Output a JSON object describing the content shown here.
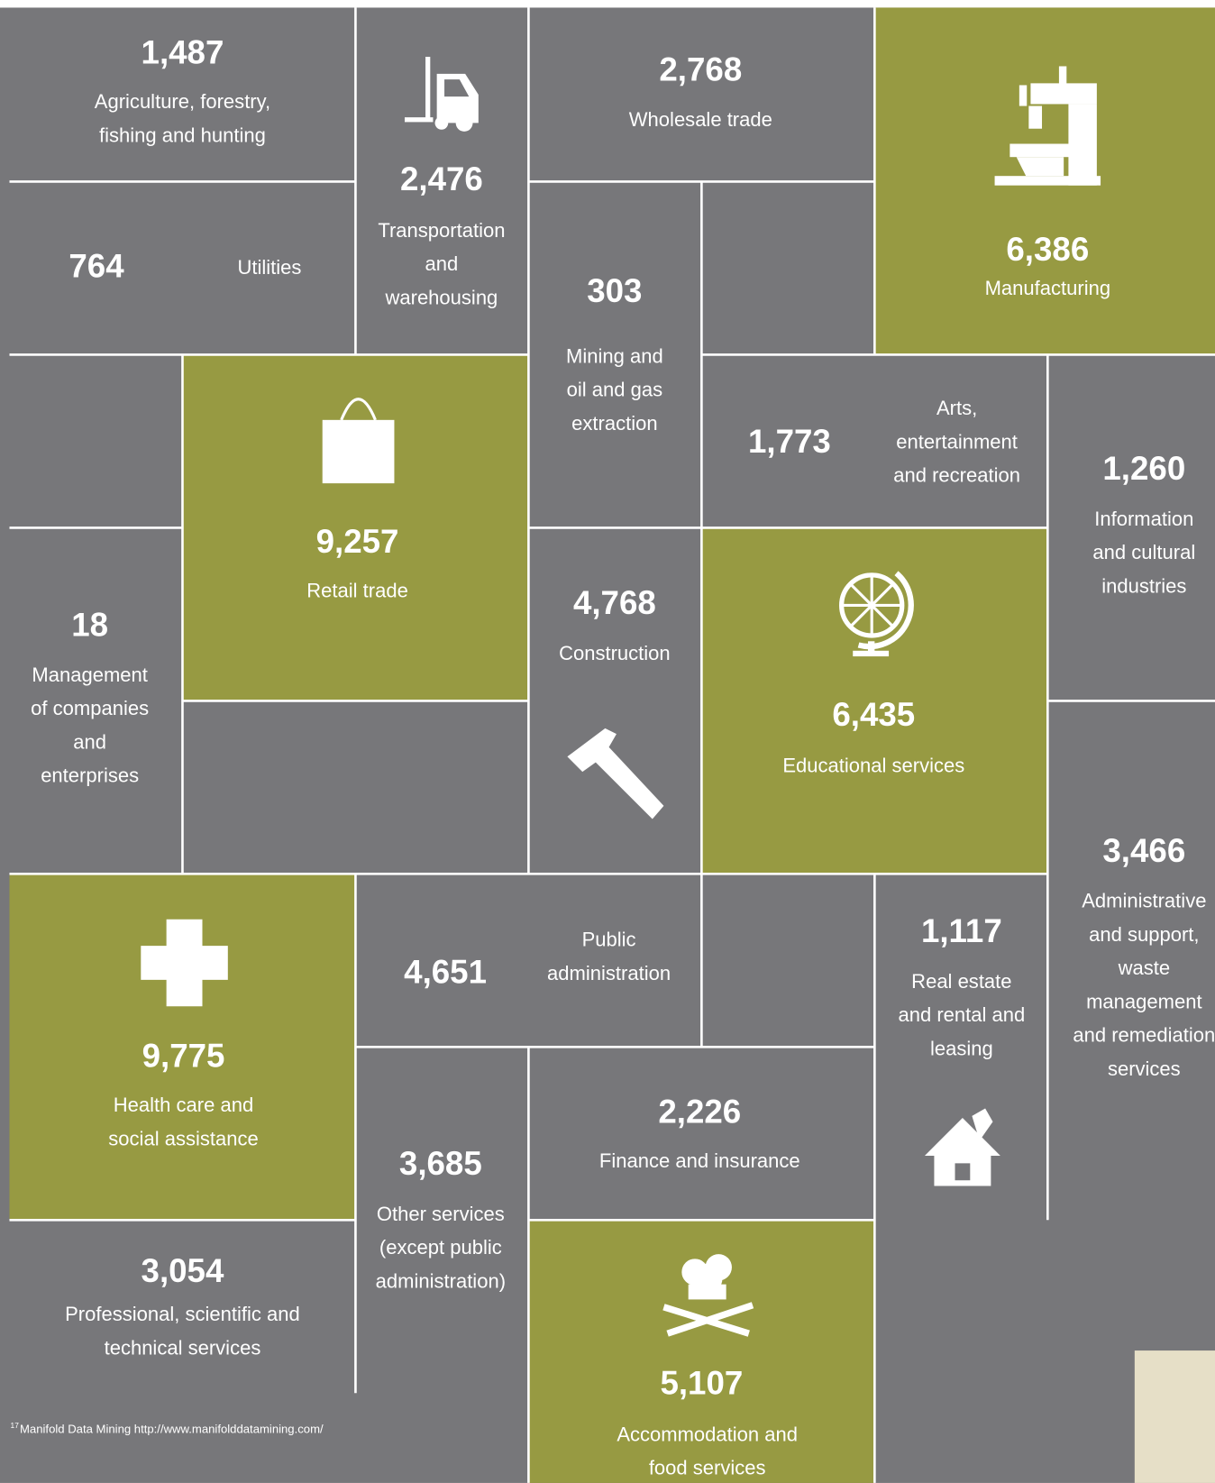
{
  "tiles": [
    {
      "value": "1,487",
      "label": [
        "Agriculture, forestry,",
        "fishing and hunting"
      ]
    },
    {
      "value": "764",
      "label": [
        "Utilities"
      ]
    },
    {
      "value": "2,476",
      "label": [
        "Transportation",
        "and",
        "warehousing"
      ]
    },
    {
      "value": "2,768",
      "label": [
        "Wholesale trade"
      ]
    },
    {
      "value": "6,386",
      "label": [
        "Manufacturing"
      ]
    },
    {
      "value": "303",
      "label": [
        "Mining and",
        "oil and gas",
        "extraction"
      ]
    },
    {
      "value": "1,773",
      "label": [
        "Arts,",
        "entertainment",
        "and recreation"
      ]
    },
    {
      "value": "1,260",
      "label": [
        "Information",
        "and cultural",
        "industries"
      ]
    },
    {
      "value": "9,257",
      "label": [
        "Retail trade"
      ]
    },
    {
      "value": "18",
      "label": [
        "Management",
        "of companies",
        "and",
        "enterprises"
      ]
    },
    {
      "value": "4,768",
      "label": [
        "Construction"
      ]
    },
    {
      "value": "6,435",
      "label": [
        "Educational services"
      ]
    },
    {
      "value": "3,466",
      "label": [
        "Administrative",
        "and support,",
        "waste",
        "management",
        "and remediation",
        "services"
      ]
    },
    {
      "value": "9,775",
      "label": [
        "Health care and",
        "social assistance"
      ]
    },
    {
      "value": "4,651",
      "label": [
        "Public",
        "administration"
      ]
    },
    {
      "value": "1,117",
      "label": [
        "Real estate",
        "and rental and",
        "leasing"
      ]
    },
    {
      "value": "2,226",
      "label": [
        "Finance and insurance"
      ]
    },
    {
      "value": "3,685",
      "label": [
        "Other services",
        "(except public",
        "administration)"
      ]
    },
    {
      "value": "3,054",
      "label": [
        "Professional, scientific and",
        "technical services"
      ]
    },
    {
      "value": "5,107",
      "label": [
        "Accommodation and",
        "food services"
      ]
    }
  ],
  "footnote": {
    "number": "17",
    "text": "Manifold Data Mining http://www.manifolddatamining.com/"
  }
}
